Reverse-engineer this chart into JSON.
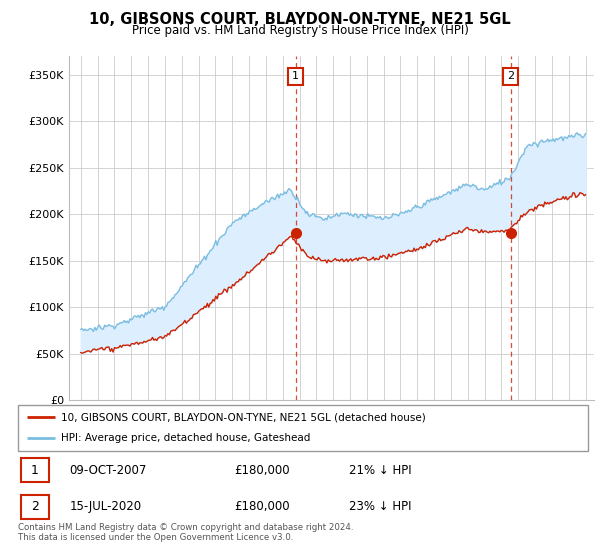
{
  "title": "10, GIBSONS COURT, BLAYDON-ON-TYNE, NE21 5GL",
  "subtitle": "Price paid vs. HM Land Registry's House Price Index (HPI)",
  "hpi_color": "#7bbde0",
  "price_color": "#cc2200",
  "fill_color": "#ddeeff",
  "marker_color": "#cc2200",
  "background_color": "#ffffff",
  "grid_color": "#cccccc",
  "ylim": [
    0,
    370000
  ],
  "yticks": [
    0,
    50000,
    100000,
    150000,
    200000,
    250000,
    300000,
    350000
  ],
  "sale1_x": 2007.77,
  "sale1_price": 180000,
  "sale2_x": 2020.54,
  "sale2_price": 180000,
  "legend_label_price": "10, GIBSONS COURT, BLAYDON-ON-TYNE, NE21 5GL (detached house)",
  "legend_label_hpi": "HPI: Average price, detached house, Gateshead",
  "footer1": "Contains HM Land Registry data © Crown copyright and database right 2024.",
  "footer2": "This data is licensed under the Open Government Licence v3.0.",
  "table_row1": [
    "1",
    "09-OCT-2007",
    "£180,000",
    "21% ↓ HPI"
  ],
  "table_row2": [
    "2",
    "15-JUL-2020",
    "£180,000",
    "23% ↓ HPI"
  ]
}
